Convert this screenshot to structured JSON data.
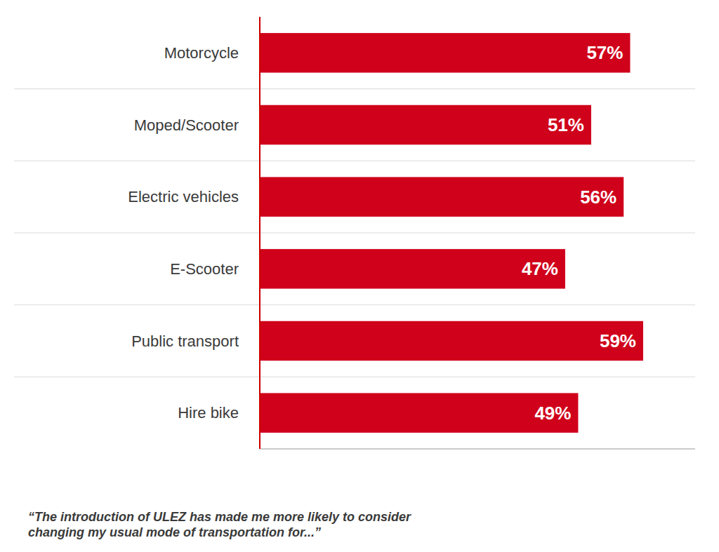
{
  "chart_data": {
    "type": "bar",
    "orientation": "horizontal",
    "categories": [
      "Motorcycle",
      "Moped/Scooter",
      "Electric vehicles",
      "E-Scooter",
      "Public transport",
      "Hire bike"
    ],
    "values": [
      57,
      51,
      56,
      47,
      59,
      49
    ],
    "value_labels": [
      "57%",
      "51%",
      "56%",
      "47%",
      "59%",
      "49%"
    ],
    "data_labels": true,
    "color": "#D0021B",
    "xlim": [
      0,
      67
    ],
    "tick_labels": false,
    "grid": false,
    "footnote": "“The introduction of ULEZ has made me more likely to consider\nchanging my usual mode of transportation for...”"
  }
}
